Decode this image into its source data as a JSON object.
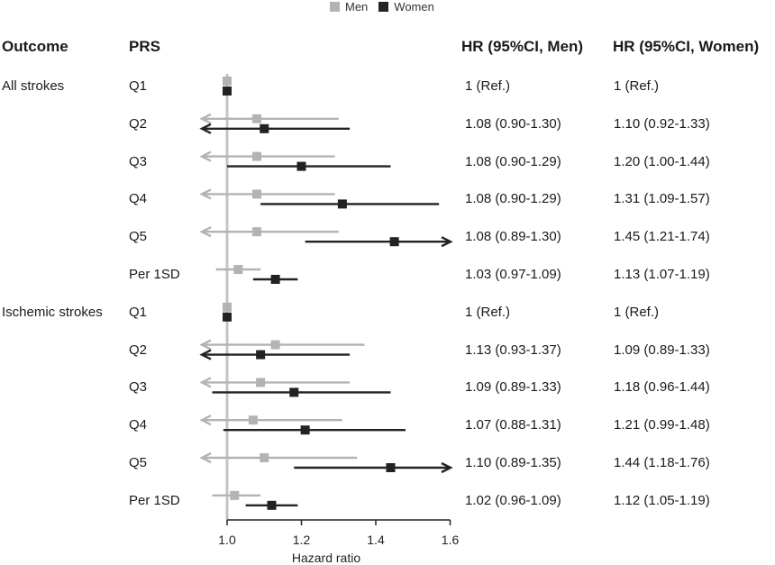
{
  "legend": {
    "men_label": "Men",
    "women_label": "Women"
  },
  "headers": {
    "outcome": "Outcome",
    "prs": "PRS",
    "hr_men": "HR (95%CI, Men)",
    "hr_women": "HR (95%CI, Women)"
  },
  "colors": {
    "men": "#b3b3b3",
    "women": "#222222",
    "refline": "#c4c4c4"
  },
  "chart_data": {
    "type": "forest",
    "xlabel": "Hazard ratio",
    "xlim": [
      0.95,
      1.6
    ],
    "xticks": [
      "1.0",
      "1.2",
      "1.4",
      "1.6"
    ],
    "xtick_values": [
      1.0,
      1.2,
      1.4,
      1.6
    ],
    "reference_value": 1.0,
    "series": [
      {
        "name": "Men",
        "color": "#b3b3b3"
      },
      {
        "name": "Women",
        "color": "#222222"
      }
    ],
    "groups": [
      {
        "outcome": "All strokes",
        "rows": [
          {
            "prs": "Q1",
            "men": {
              "hr": 1.0,
              "lo": 1.0,
              "hi": 1.0,
              "label": "1 (Ref.)"
            },
            "women": {
              "hr": 1.0,
              "lo": 1.0,
              "hi": 1.0,
              "label": "1 (Ref.)"
            }
          },
          {
            "prs": "Q2",
            "men": {
              "hr": 1.08,
              "lo": 0.9,
              "hi": 1.3,
              "label": "1.08 (0.90-1.30)"
            },
            "women": {
              "hr": 1.1,
              "lo": 0.92,
              "hi": 1.33,
              "label": "1.10 (0.92-1.33)"
            }
          },
          {
            "prs": "Q3",
            "men": {
              "hr": 1.08,
              "lo": 0.9,
              "hi": 1.29,
              "label": "1.08 (0.90-1.29)"
            },
            "women": {
              "hr": 1.2,
              "lo": 1.0,
              "hi": 1.44,
              "label": "1.20 (1.00-1.44)"
            }
          },
          {
            "prs": "Q4",
            "men": {
              "hr": 1.08,
              "lo": 0.9,
              "hi": 1.29,
              "label": "1.08 (0.90-1.29)"
            },
            "women": {
              "hr": 1.31,
              "lo": 1.09,
              "hi": 1.57,
              "label": "1.31 (1.09-1.57)"
            }
          },
          {
            "prs": "Q5",
            "men": {
              "hr": 1.08,
              "lo": 0.89,
              "hi": 1.3,
              "label": "1.08 (0.89-1.30)"
            },
            "women": {
              "hr": 1.45,
              "lo": 1.21,
              "hi": 1.74,
              "label": "1.45 (1.21-1.74)"
            }
          },
          {
            "prs": "Per 1SD",
            "men": {
              "hr": 1.03,
              "lo": 0.97,
              "hi": 1.09,
              "label": "1.03 (0.97-1.09)"
            },
            "women": {
              "hr": 1.13,
              "lo": 1.07,
              "hi": 1.19,
              "label": "1.13 (1.07-1.19)"
            }
          }
        ]
      },
      {
        "outcome": "Ischemic strokes",
        "rows": [
          {
            "prs": "Q1",
            "men": {
              "hr": 1.0,
              "lo": 1.0,
              "hi": 1.0,
              "label": "1 (Ref.)"
            },
            "women": {
              "hr": 1.0,
              "lo": 1.0,
              "hi": 1.0,
              "label": "1 (Ref.)"
            }
          },
          {
            "prs": "Q2",
            "men": {
              "hr": 1.13,
              "lo": 0.93,
              "hi": 1.37,
              "label": "1.13 (0.93-1.37)"
            },
            "women": {
              "hr": 1.09,
              "lo": 0.89,
              "hi": 1.33,
              "label": "1.09 (0.89-1.33)"
            }
          },
          {
            "prs": "Q3",
            "men": {
              "hr": 1.09,
              "lo": 0.89,
              "hi": 1.33,
              "label": "1.09 (0.89-1.33)"
            },
            "women": {
              "hr": 1.18,
              "lo": 0.96,
              "hi": 1.44,
              "label": "1.18 (0.96-1.44)"
            }
          },
          {
            "prs": "Q4",
            "men": {
              "hr": 1.07,
              "lo": 0.88,
              "hi": 1.31,
              "label": "1.07 (0.88-1.31)"
            },
            "women": {
              "hr": 1.21,
              "lo": 0.99,
              "hi": 1.48,
              "label": "1.21 (0.99-1.48)"
            }
          },
          {
            "prs": "Q5",
            "men": {
              "hr": 1.1,
              "lo": 0.89,
              "hi": 1.35,
              "label": "1.10 (0.89-1.35)"
            },
            "women": {
              "hr": 1.44,
              "lo": 1.18,
              "hi": 1.76,
              "label": "1.44 (1.18-1.76)"
            }
          },
          {
            "prs": "Per 1SD",
            "men": {
              "hr": 1.02,
              "lo": 0.96,
              "hi": 1.09,
              "label": "1.02 (0.96-1.09)"
            },
            "women": {
              "hr": 1.12,
              "lo": 1.05,
              "hi": 1.19,
              "label": "1.12 (1.05-1.19)"
            }
          }
        ]
      }
    ]
  }
}
